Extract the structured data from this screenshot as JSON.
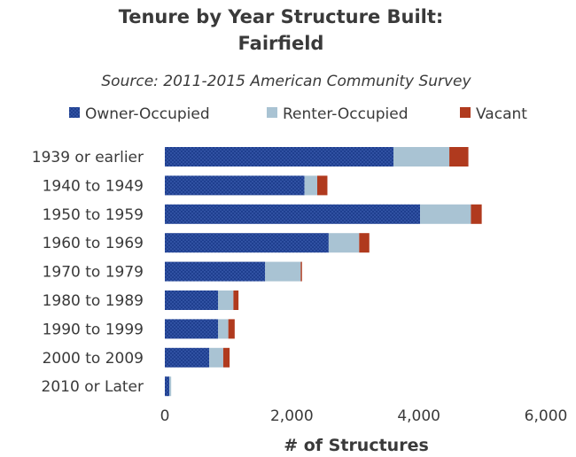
{
  "chart_data": {
    "type": "bar",
    "orientation": "horizontal",
    "stacked": true,
    "title_line1": "Tenure by Year Structure Built:",
    "title_line2": "Fairfield",
    "subtitle": "Source: 2011-2015  American Community Survey",
    "xlabel": "# of Structures",
    "xlim": [
      0,
      6000
    ],
    "xticks": [
      "0",
      "2,000",
      "4,000",
      "6,000"
    ],
    "xtick_values": [
      0,
      2000,
      4000,
      6000
    ],
    "grid": false,
    "legend_position": "top",
    "categories": [
      "1939 or earlier",
      "1940 to 1949",
      "1950 to 1959",
      "1960 to 1969",
      "1970 to 1979",
      "1980 to 1989",
      "1990 to 1999",
      "2000 to 2009",
      "2010 or Later"
    ],
    "series": [
      {
        "name": "Owner-Occupied",
        "color": "#1f3f8f",
        "values": [
          3600,
          2200,
          4020,
          2580,
          1580,
          840,
          840,
          700,
          70
        ]
      },
      {
        "name": "Renter-Occupied",
        "color": "#a9c3d3",
        "values": [
          880,
          200,
          800,
          480,
          560,
          240,
          160,
          220,
          30
        ]
      },
      {
        "name": "Vacant",
        "color": "#b03a1e",
        "values": [
          300,
          160,
          170,
          160,
          20,
          80,
          100,
          100,
          0
        ]
      }
    ]
  }
}
